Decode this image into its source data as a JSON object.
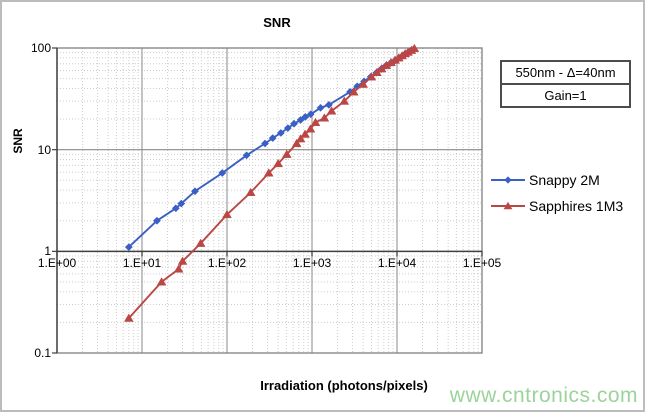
{
  "watermark": {
    "text": "www.cntronics.com",
    "color": "#9bd39b"
  },
  "annotation_box": {
    "line1": "550nm - Δ=40nm",
    "line2": "Gain=1"
  },
  "chart_data": {
    "type": "line",
    "title": "SNR",
    "xlabel": "Irradiation (photons/pixels)",
    "ylabel": "SNR",
    "x_scale": "log",
    "y_scale": "log",
    "xlim": [
      1,
      100000
    ],
    "ylim": [
      0.1,
      100
    ],
    "grid": "major+minor",
    "legend_position": "right",
    "x_ticks": [
      {
        "value": 1,
        "label": "1.E+00"
      },
      {
        "value": 10,
        "label": "1.E+01"
      },
      {
        "value": 100,
        "label": "1.E+02"
      },
      {
        "value": 1000,
        "label": "1.E+03"
      },
      {
        "value": 10000,
        "label": "1.E+04"
      },
      {
        "value": 100000,
        "label": "1.E+05"
      }
    ],
    "y_ticks": [
      {
        "value": 100,
        "label": "100"
      },
      {
        "value": 10,
        "label": "10"
      },
      {
        "value": 1,
        "label": "1"
      },
      {
        "value": 0.1,
        "label": "0.1"
      }
    ],
    "series": [
      {
        "name": "Snappy 2M",
        "color": "#3a5fc5",
        "marker": "diamond",
        "points": [
          [
            7,
            1.1
          ],
          [
            15,
            2.0
          ],
          [
            25,
            2.65
          ],
          [
            29,
            2.95
          ],
          [
            42,
            3.9
          ],
          [
            88,
            5.9
          ],
          [
            170,
            8.8
          ],
          [
            280,
            11.5
          ],
          [
            345,
            13
          ],
          [
            430,
            14.6
          ],
          [
            520,
            16.3
          ],
          [
            615,
            18
          ],
          [
            735,
            19.6
          ],
          [
            835,
            21
          ],
          [
            965,
            22.3
          ],
          [
            1260,
            25.8
          ],
          [
            1580,
            27.6
          ],
          [
            2800,
            37
          ],
          [
            3400,
            42
          ],
          [
            4100,
            47
          ],
          [
            4900,
            52
          ],
          [
            5700,
            57
          ],
          [
            6500,
            62
          ],
          [
            7400,
            67
          ],
          [
            8400,
            71
          ],
          [
            9400,
            75
          ],
          [
            10400,
            79
          ],
          [
            11400,
            83
          ],
          [
            12400,
            87
          ],
          [
            13400,
            90
          ],
          [
            14400,
            93
          ],
          [
            15500,
            96
          ]
        ]
      },
      {
        "name": "Sapphires 1M3",
        "color": "#bb4745",
        "marker": "triangle",
        "points": [
          [
            7,
            0.22
          ],
          [
            17,
            0.5
          ],
          [
            27,
            0.67
          ],
          [
            30,
            0.8
          ],
          [
            49,
            1.2
          ],
          [
            100,
            2.3
          ],
          [
            190,
            3.8
          ],
          [
            310,
            5.9
          ],
          [
            400,
            7.3
          ],
          [
            505,
            9.0
          ],
          [
            660,
            11.5
          ],
          [
            735,
            12.8
          ],
          [
            830,
            14.2
          ],
          [
            960,
            16
          ],
          [
            1100,
            18.5
          ],
          [
            1400,
            20.5
          ],
          [
            1700,
            24
          ],
          [
            2400,
            30
          ],
          [
            3100,
            37
          ],
          [
            4000,
            44
          ],
          [
            5000,
            52
          ],
          [
            5800,
            57.5
          ],
          [
            6600,
            62.5
          ],
          [
            7500,
            67.5
          ],
          [
            8500,
            72
          ],
          [
            9500,
            76
          ],
          [
            10500,
            80
          ],
          [
            11500,
            84
          ],
          [
            12500,
            88
          ],
          [
            13500,
            91
          ],
          [
            14800,
            95
          ],
          [
            16000,
            99
          ]
        ]
      }
    ]
  }
}
